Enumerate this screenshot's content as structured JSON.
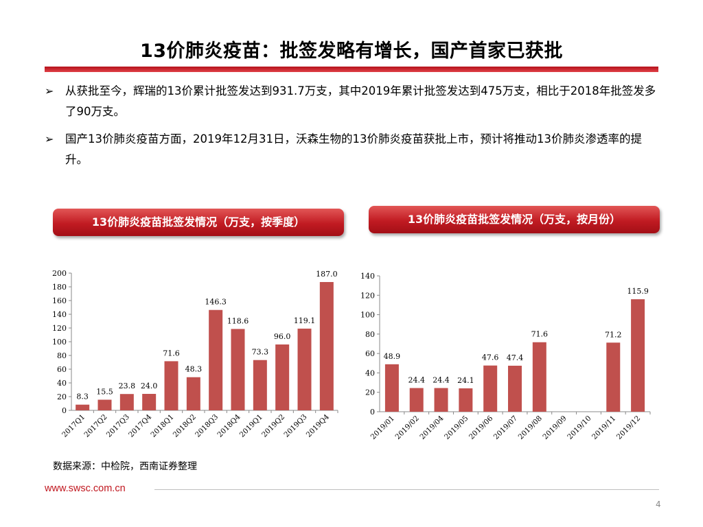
{
  "title": "13价肺炎疫苗：批签发略有增长，国产首家已获批",
  "bullets": [
    {
      "mark": "➢",
      "text": "从获批至今，辉瑞的13价累计批签发达到931.7万支，其中2019年累计批签发达到475万支，相比于2018年批签发多了90万支。"
    },
    {
      "mark": "➢",
      "text": "国产13价肺炎疫苗方面，2019年12月31日，沃森生物的13价肺炎疫苗获批上市，预计将推动13价肺炎渗透率的提升。"
    }
  ],
  "chart_data": [
    {
      "type": "bar",
      "title": "13价肺炎疫苗批签发情况（万支，按季度）",
      "categories": [
        "2017Q1",
        "2017Q2",
        "2017Q3",
        "2017Q4",
        "2018Q1",
        "2018Q2",
        "2018Q3",
        "2018Q4",
        "2019Q1",
        "2019Q2",
        "2019Q3",
        "2019Q4"
      ],
      "values": [
        8.3,
        15.5,
        23.8,
        24.0,
        71.6,
        48.3,
        146.3,
        118.6,
        73.3,
        96.0,
        119.1,
        187.0
      ],
      "labels": [
        "8.3",
        "15.5",
        "23.8",
        "24.0",
        "71.6",
        "48.3",
        "146.3",
        "118.6",
        "73.3",
        "96.0",
        "119.1",
        "187.0"
      ],
      "ylim": [
        0,
        200
      ],
      "yticks": [
        0,
        20,
        40,
        60,
        80,
        100,
        120,
        140,
        160,
        180,
        200
      ],
      "bar_color": "#c0504d",
      "grid": false
    },
    {
      "type": "bar",
      "title": "13价肺炎疫苗批签发情况（万支，按月份）",
      "categories": [
        "2019/01",
        "2019/02",
        "2019/04",
        "2019/05",
        "2019/06",
        "2019/07",
        "2019/08",
        "2019/09",
        "2019/10",
        "2019/11",
        "2019/12"
      ],
      "values": [
        48.9,
        24.4,
        24.4,
        24.1,
        47.6,
        47.4,
        71.6,
        null,
        null,
        71.2,
        115.9
      ],
      "labels": [
        "48.9",
        "24.4",
        "24.4",
        "24.1",
        "47.6",
        "47.4",
        "71.6",
        "",
        "",
        "71.2",
        "115.9"
      ],
      "ylim": [
        0,
        140
      ],
      "yticks": [
        0,
        20,
        40,
        60,
        80,
        100,
        120,
        140
      ],
      "bar_color": "#c0504d",
      "grid": false
    }
  ],
  "source": "数据来源：中检院，西南证券整理",
  "site": "www.swsc.com.cn",
  "page_number": "4"
}
